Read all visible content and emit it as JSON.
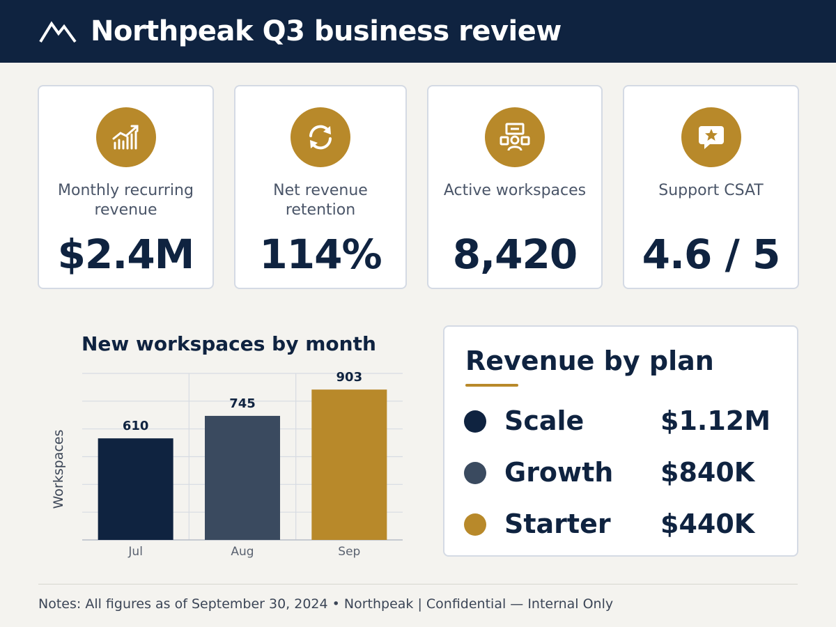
{
  "header": {
    "title": "Northpeak Q3 business review",
    "logo_icon": "mountain-icon"
  },
  "kpis": [
    {
      "label": "Monthly recurring revenue",
      "value": "$2.4M",
      "icon": "trending-up-chart-icon"
    },
    {
      "label": "Net revenue retention",
      "value": "114%",
      "icon": "refresh-cycle-icon"
    },
    {
      "label": "Active workspaces",
      "value": "8,420",
      "icon": "workspace-user-icon"
    },
    {
      "label": "Support CSAT",
      "value": "4.6 / 5",
      "icon": "star-chat-icon"
    }
  ],
  "colors": {
    "navy": "#0f2340",
    "slate": "#3a4a5f",
    "gold": "#b8892a"
  },
  "chart_data": {
    "type": "bar",
    "title": "New workspaces by month",
    "xlabel": "",
    "ylabel": "Workspaces",
    "categories": [
      "Jul",
      "Aug",
      "Sep"
    ],
    "values": [
      610,
      745,
      903
    ],
    "data_labels": [
      "610",
      "745",
      "903"
    ],
    "bar_colors": [
      "#0f2340",
      "#3a4a5f",
      "#b8892a"
    ],
    "grid": true
  },
  "revenue_by_plan": {
    "title": "Revenue by plan",
    "plans": [
      {
        "name": "Scale",
        "value": "$1.12M",
        "color": "#0f2340"
      },
      {
        "name": "Growth",
        "value": "$840K",
        "color": "#3a4a5f"
      },
      {
        "name": "Starter",
        "value": "$440K",
        "color": "#b8892a"
      }
    ]
  },
  "footer": {
    "notes": "Notes: All figures as of September 30, 2024 • Northpeak | Confidential — Internal Only"
  }
}
